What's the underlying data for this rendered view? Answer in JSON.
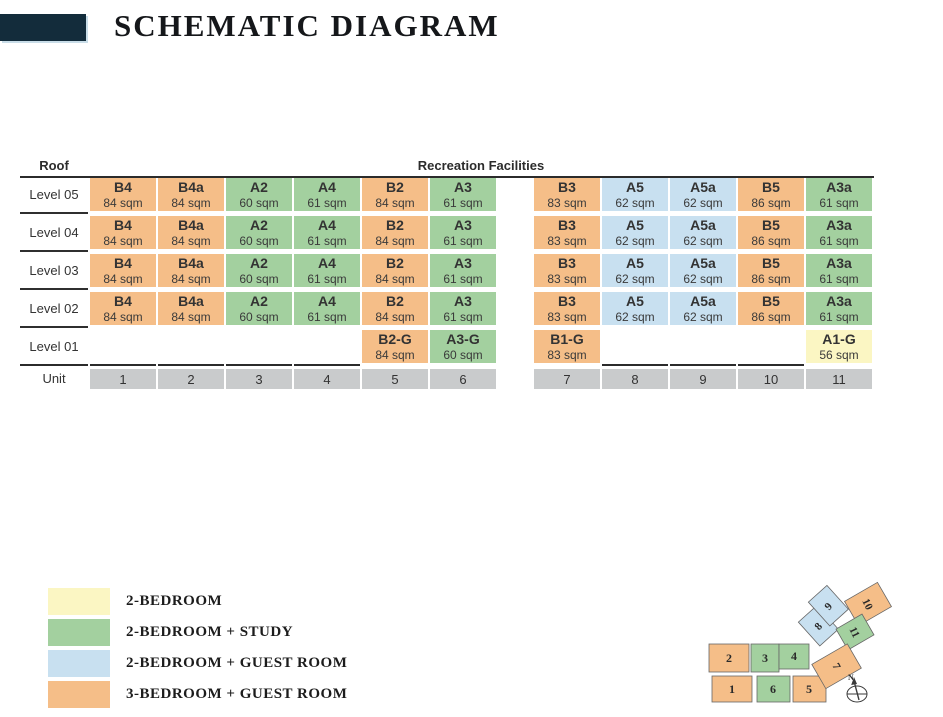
{
  "title": "SCHEMATIC DIAGRAM",
  "colors": {
    "2br": "#FBF6C3",
    "2br_study": "#A3D09F",
    "2br_guest": "#C8E0F0",
    "3br_guest": "#F5BE88",
    "unit_row": "#C9CBCC",
    "line": "#2b2b2b",
    "brand_bar": "#132c3b"
  },
  "table": {
    "roof_label": "Roof",
    "recreation_label": "Recreation Facilities",
    "unit_label": "Unit",
    "unit_numbers": [
      "1",
      "2",
      "3",
      "4",
      "5",
      "6",
      "7",
      "8",
      "9",
      "10",
      "11"
    ],
    "levels": [
      {
        "label": "Level 05",
        "cells": [
          {
            "unit": "B4",
            "area": "84 sqm",
            "cat": "3br_guest"
          },
          {
            "unit": "B4a",
            "area": "84 sqm",
            "cat": "3br_guest"
          },
          {
            "unit": "A2",
            "area": "60 sqm",
            "cat": "2br_study"
          },
          {
            "unit": "A4",
            "area": "61 sqm",
            "cat": "2br_study"
          },
          {
            "unit": "B2",
            "area": "84 sqm",
            "cat": "3br_guest"
          },
          {
            "unit": "A3",
            "area": "61 sqm",
            "cat": "2br_study"
          },
          {
            "unit": "B3",
            "area": "83 sqm",
            "cat": "3br_guest"
          },
          {
            "unit": "A5",
            "area": "62 sqm",
            "cat": "2br_guest"
          },
          {
            "unit": "A5a",
            "area": "62 sqm",
            "cat": "2br_guest"
          },
          {
            "unit": "B5",
            "area": "86 sqm",
            "cat": "3br_guest"
          },
          {
            "unit": "A3a",
            "area": "61 sqm",
            "cat": "2br_study"
          }
        ]
      },
      {
        "label": "Level 04",
        "cells": [
          {
            "unit": "B4",
            "area": "84 sqm",
            "cat": "3br_guest"
          },
          {
            "unit": "B4a",
            "area": "84 sqm",
            "cat": "3br_guest"
          },
          {
            "unit": "A2",
            "area": "60 sqm",
            "cat": "2br_study"
          },
          {
            "unit": "A4",
            "area": "61 sqm",
            "cat": "2br_study"
          },
          {
            "unit": "B2",
            "area": "84 sqm",
            "cat": "3br_guest"
          },
          {
            "unit": "A3",
            "area": "61 sqm",
            "cat": "2br_study"
          },
          {
            "unit": "B3",
            "area": "83 sqm",
            "cat": "3br_guest"
          },
          {
            "unit": "A5",
            "area": "62 sqm",
            "cat": "2br_guest"
          },
          {
            "unit": "A5a",
            "area": "62 sqm",
            "cat": "2br_guest"
          },
          {
            "unit": "B5",
            "area": "86 sqm",
            "cat": "3br_guest"
          },
          {
            "unit": "A3a",
            "area": "61 sqm",
            "cat": "2br_study"
          }
        ]
      },
      {
        "label": "Level 03",
        "cells": [
          {
            "unit": "B4",
            "area": "84 sqm",
            "cat": "3br_guest"
          },
          {
            "unit": "B4a",
            "area": "84 sqm",
            "cat": "3br_guest"
          },
          {
            "unit": "A2",
            "area": "60 sqm",
            "cat": "2br_study"
          },
          {
            "unit": "A4",
            "area": "61 sqm",
            "cat": "2br_study"
          },
          {
            "unit": "B2",
            "area": "84 sqm",
            "cat": "3br_guest"
          },
          {
            "unit": "A3",
            "area": "61 sqm",
            "cat": "2br_study"
          },
          {
            "unit": "B3",
            "area": "83 sqm",
            "cat": "3br_guest"
          },
          {
            "unit": "A5",
            "area": "62 sqm",
            "cat": "2br_guest"
          },
          {
            "unit": "A5a",
            "area": "62 sqm",
            "cat": "2br_guest"
          },
          {
            "unit": "B5",
            "area": "86 sqm",
            "cat": "3br_guest"
          },
          {
            "unit": "A3a",
            "area": "61 sqm",
            "cat": "2br_study"
          }
        ]
      },
      {
        "label": "Level 02",
        "cells": [
          {
            "unit": "B4",
            "area": "84 sqm",
            "cat": "3br_guest"
          },
          {
            "unit": "B4a",
            "area": "84 sqm",
            "cat": "3br_guest"
          },
          {
            "unit": "A2",
            "area": "60 sqm",
            "cat": "2br_study"
          },
          {
            "unit": "A4",
            "area": "61 sqm",
            "cat": "2br_study"
          },
          {
            "unit": "B2",
            "area": "84 sqm",
            "cat": "3br_guest"
          },
          {
            "unit": "A3",
            "area": "61 sqm",
            "cat": "2br_study"
          },
          {
            "unit": "B3",
            "area": "83 sqm",
            "cat": "3br_guest"
          },
          {
            "unit": "A5",
            "area": "62 sqm",
            "cat": "2br_guest"
          },
          {
            "unit": "A5a",
            "area": "62 sqm",
            "cat": "2br_guest"
          },
          {
            "unit": "B5",
            "area": "86 sqm",
            "cat": "3br_guest"
          },
          {
            "unit": "A3a",
            "area": "61 sqm",
            "cat": "2br_study"
          }
        ]
      },
      {
        "label": "Level 01",
        "cells": [
          null,
          null,
          null,
          null,
          {
            "unit": "B2-G",
            "area": "84 sqm",
            "cat": "3br_guest"
          },
          {
            "unit": "A3-G",
            "area": "60 sqm",
            "cat": "2br_study"
          },
          {
            "unit": "B1-G",
            "area": "83 sqm",
            "cat": "3br_guest"
          },
          null,
          null,
          null,
          {
            "unit": "A1-G",
            "area": "56 sqm",
            "cat": "2br"
          }
        ]
      }
    ]
  },
  "legend": {
    "items": [
      {
        "label": "2-BEDROOM",
        "cat": "2br"
      },
      {
        "label": "2-BEDROOM + STUDY",
        "cat": "2br_study"
      },
      {
        "label": "2-BEDROOM + GUEST ROOM",
        "cat": "2br_guest"
      },
      {
        "label": "3-BEDROOM + GUEST ROOM",
        "cat": "3br_guest"
      }
    ]
  },
  "site_plan": {
    "compass_label": "N",
    "units": [
      {
        "num": "1",
        "cat": "3br_guest"
      },
      {
        "num": "2",
        "cat": "3br_guest"
      },
      {
        "num": "3",
        "cat": "2br_study"
      },
      {
        "num": "4",
        "cat": "2br_study"
      },
      {
        "num": "5",
        "cat": "3br_guest"
      },
      {
        "num": "6",
        "cat": "2br_study"
      },
      {
        "num": "7",
        "cat": "3br_guest"
      },
      {
        "num": "8",
        "cat": "2br_guest"
      },
      {
        "num": "9",
        "cat": "2br_guest"
      },
      {
        "num": "10",
        "cat": "3br_guest"
      },
      {
        "num": "11",
        "cat": "2br_study"
      }
    ]
  }
}
